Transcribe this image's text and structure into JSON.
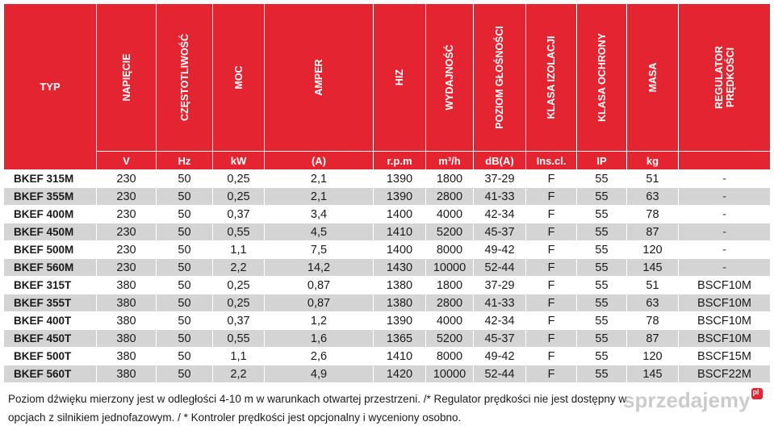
{
  "header": {
    "typ": "TYP",
    "columns": [
      {
        "label": "NAPIĘCIE",
        "unit": "V"
      },
      {
        "label": "CZĘSTOTLIWOŚĆ",
        "unit": "Hz"
      },
      {
        "label": "MOC",
        "unit": "kW"
      },
      {
        "label": "AMPER",
        "unit": "(A)"
      },
      {
        "label": "HIZ",
        "unit": "r.p.m"
      },
      {
        "label": "WYDAJNOŚĆ",
        "unit": "m³/h"
      },
      {
        "label": "POZIOM GŁOŚNOŚCI",
        "unit": "dB(A)"
      },
      {
        "label": "KLASA IZOLACJI",
        "unit": "Ins.cl."
      },
      {
        "label": "KLASA OCHRONY",
        "unit": "IP"
      },
      {
        "label": "MASA",
        "unit": "kg"
      },
      {
        "label": "REGULATOR PRĘDKOŚCI",
        "unit": ""
      }
    ]
  },
  "rows": [
    [
      "BKEF 315M",
      "230",
      "50",
      "0,25",
      "2,1",
      "1390",
      "1800",
      "37-29",
      "F",
      "55",
      "51",
      "-"
    ],
    [
      "BKEF 355M",
      "230",
      "50",
      "0,25",
      "2,1",
      "1390",
      "2800",
      "41-33",
      "F",
      "55",
      "63",
      "-"
    ],
    [
      "BKEF 400M",
      "230",
      "50",
      "0,37",
      "3,4",
      "1400",
      "4000",
      "42-34",
      "F",
      "55",
      "78",
      "-"
    ],
    [
      "BKEF 450M",
      "230",
      "50",
      "0,55",
      "4,5",
      "1410",
      "5200",
      "45-37",
      "F",
      "55",
      "87",
      "-"
    ],
    [
      "BKEF 500M",
      "230",
      "50",
      "1,1",
      "7,5",
      "1400",
      "8000",
      "49-42",
      "F",
      "55",
      "120",
      "-"
    ],
    [
      "BKEF 560M",
      "230",
      "50",
      "2,2",
      "14,2",
      "1430",
      "10000",
      "52-44",
      "F",
      "55",
      "145",
      "-"
    ],
    [
      "BKEF 315T",
      "380",
      "50",
      "0,25",
      "0,87",
      "1380",
      "1800",
      "37-29",
      "F",
      "55",
      "51",
      "BSCF10M"
    ],
    [
      "BKEF 355T",
      "380",
      "50",
      "0,25",
      "0,87",
      "1380",
      "2800",
      "41-33",
      "F",
      "55",
      "63",
      "BSCF10M"
    ],
    [
      "BKEF 400T",
      "380",
      "50",
      "0,37",
      "1,2",
      "1390",
      "4000",
      "42-34",
      "F",
      "55",
      "78",
      "BSCF10M"
    ],
    [
      "BKEF 450T",
      "380",
      "50",
      "0,55",
      "1,6",
      "1365",
      "5200",
      "45-37",
      "F",
      "55",
      "87",
      "BSCF10M"
    ],
    [
      "BKEF 500T",
      "380",
      "50",
      "1,1",
      "2,6",
      "1410",
      "8000",
      "49-42",
      "F",
      "55",
      "120",
      "BSCF15M"
    ],
    [
      "BKEF 560T",
      "380",
      "50",
      "2,2",
      "4,9",
      "1420",
      "10000",
      "52-44",
      "F",
      "55",
      "145",
      "BSCF22M"
    ]
  ],
  "notes": {
    "line1": "Poziom dźwięku mierzony jest w odległości 4-10 m w warunkach otwartej przestrzeni. /* Regulator prędkości nie jest dostępny w",
    "line2": "opcjach z silnikiem jednofazowym. / * Kontroler prędkości jest opcjonalny i wyceniony osobno."
  },
  "watermark": {
    "text": "sprzedajemy",
    "suffix": "pl"
  },
  "colors": {
    "header_red": "#e52431",
    "stripe_grey": "#d4d4d4"
  }
}
